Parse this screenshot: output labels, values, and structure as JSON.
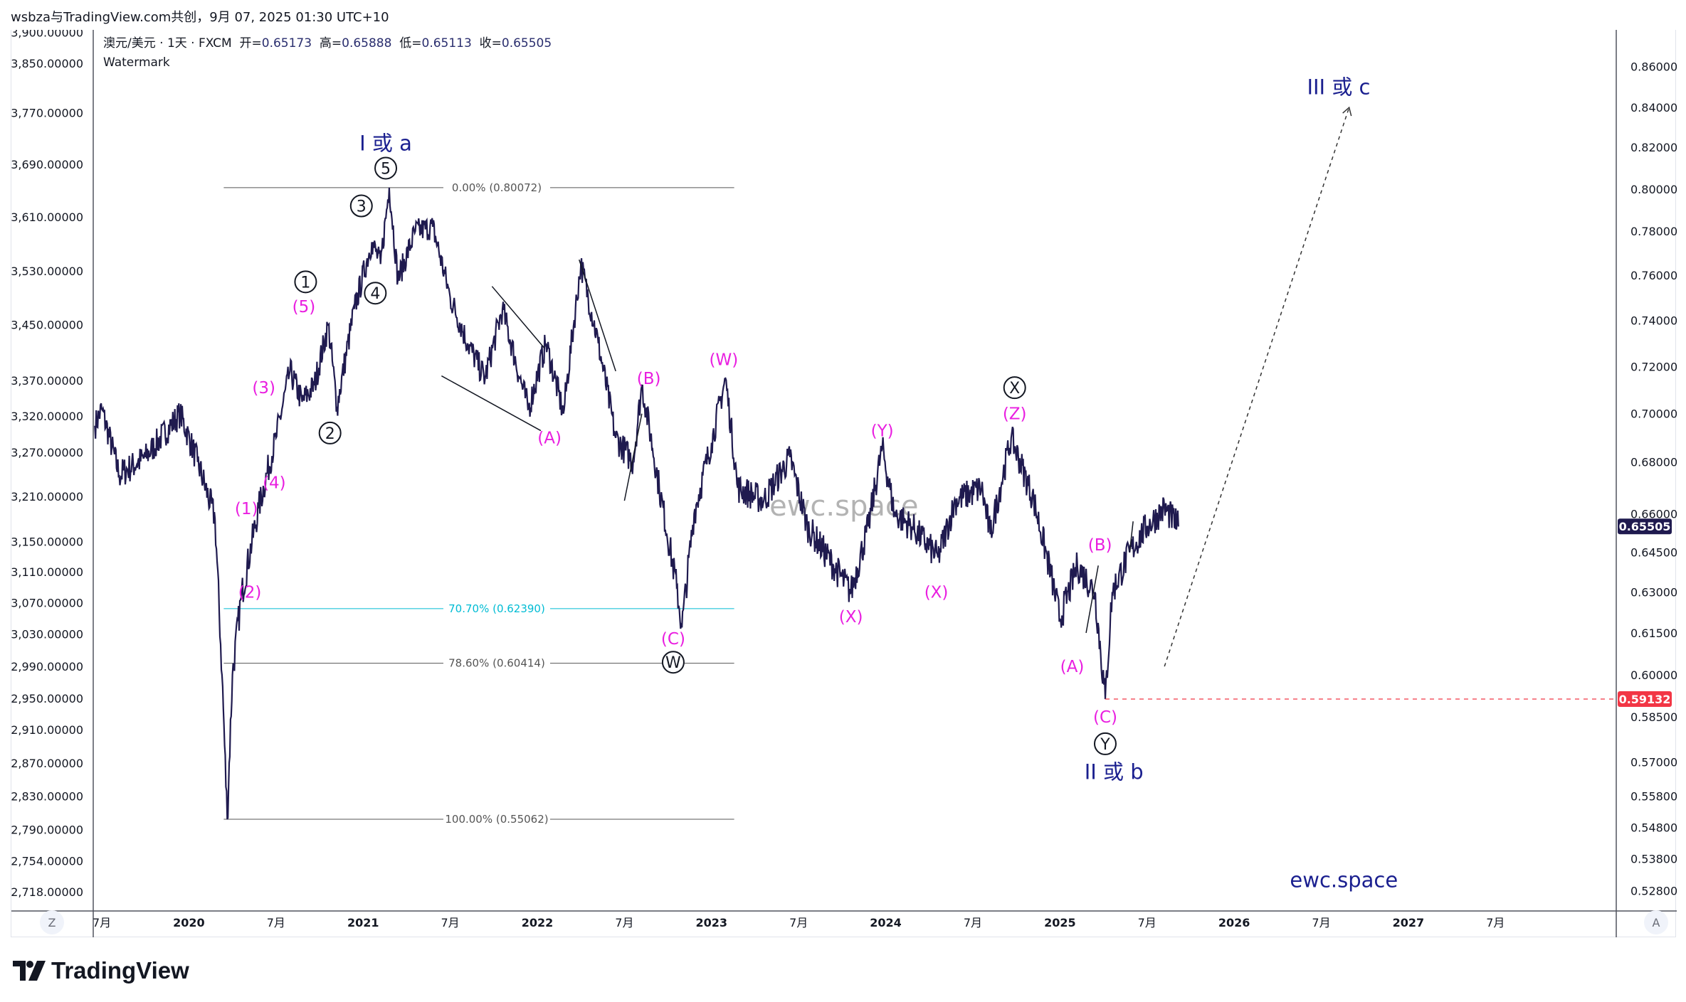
{
  "header": {
    "title": "wsbza与TradingView.com共创，9月 07, 2025 01:30 UTC+10"
  },
  "legend": {
    "symbol": "澳元/美元 · 1天 · FXCM",
    "open_label": "开=",
    "open": "0.65173",
    "high_label": "高=",
    "high": "0.65888",
    "low_label": "低=",
    "low": "0.65113",
    "close_label": "收=",
    "close": "0.65505",
    "watermark_label": "Watermark"
  },
  "colors": {
    "price_line": "#1f1a4f",
    "wave_magenta": "#e91ee0",
    "wave_navy": "#1a1f8f",
    "fib_cyan": "#00bcd4",
    "last_price_badge": "#1f1a4f",
    "low_badge": "#f23645"
  },
  "axis_buttons": {
    "left": "Z",
    "right": "A"
  },
  "brand": {
    "logo_text": "TradingView",
    "watermark_center": "ewc.space",
    "watermark_corner": "ewc.space"
  },
  "chart_data": {
    "type": "line",
    "title": "澳元/美元 · 1天 · FXCM",
    "right_axis": {
      "scale": "log",
      "ticks": [
        "0.86000",
        "0.84000",
        "0.82000",
        "0.80000",
        "0.78000",
        "0.76000",
        "0.74000",
        "0.72000",
        "0.70000",
        "0.68000",
        "0.66000",
        "0.64500",
        "0.63000",
        "0.61500",
        "0.60000",
        "0.58500",
        "0.57000",
        "0.55800",
        "0.54800",
        "0.53800",
        "0.52800"
      ],
      "last_price": "0.65505",
      "marked_low": "0.59132"
    },
    "left_axis": {
      "ticks": [
        "3,900.00000",
        "3,850.00000",
        "3,770.00000",
        "3,690.00000",
        "3,610.00000",
        "3,530.00000",
        "3,450.00000",
        "3,370.00000",
        "3,320.00000",
        "3,270.00000",
        "3,210.00000",
        "3,150.00000",
        "3,110.00000",
        "3,070.00000",
        "3,030.00000",
        "2,990.00000",
        "2,950.00000",
        "2,910.00000",
        "2,870.00000",
        "2,830.00000",
        "2,790.00000",
        "2,754.00000",
        "2,718.00000"
      ]
    },
    "x_axis": {
      "ticks": [
        {
          "t": 2019.5,
          "label": "7月"
        },
        {
          "t": 2020,
          "label": "2020",
          "bold": true
        },
        {
          "t": 2020.5,
          "label": "7月"
        },
        {
          "t": 2021,
          "label": "2021",
          "bold": true
        },
        {
          "t": 2021.5,
          "label": "7月"
        },
        {
          "t": 2022,
          "label": "2022",
          "bold": true
        },
        {
          "t": 2022.5,
          "label": "7月"
        },
        {
          "t": 2023,
          "label": "2023",
          "bold": true
        },
        {
          "t": 2023.5,
          "label": "7月"
        },
        {
          "t": 2024,
          "label": "2024",
          "bold": true
        },
        {
          "t": 2024.5,
          "label": "7月"
        },
        {
          "t": 2025,
          "label": "2025",
          "bold": true
        },
        {
          "t": 2025.5,
          "label": "7月"
        },
        {
          "t": 2026,
          "label": "2026",
          "bold": true
        },
        {
          "t": 2026.5,
          "label": "7月"
        },
        {
          "t": 2027,
          "label": "2027",
          "bold": true
        },
        {
          "t": 2027.5,
          "label": "7月"
        }
      ]
    },
    "series": [
      {
        "name": "AUDUSD",
        "points": [
          [
            2019.46,
            0.695
          ],
          [
            2019.5,
            0.702
          ],
          [
            2019.6,
            0.675
          ],
          [
            2019.75,
            0.682
          ],
          [
            2019.95,
            0.7
          ],
          [
            2020.05,
            0.68
          ],
          [
            2020.15,
            0.658
          ],
          [
            2020.19,
            0.6
          ],
          [
            2020.22,
            0.5506
          ],
          [
            2020.25,
            0.6
          ],
          [
            2020.3,
            0.628
          ],
          [
            2020.4,
            0.662
          ],
          [
            2020.5,
            0.69
          ],
          [
            2020.58,
            0.718
          ],
          [
            2020.65,
            0.705
          ],
          [
            2020.72,
            0.712
          ],
          [
            2020.8,
            0.738
          ],
          [
            2020.85,
            0.703
          ],
          [
            2020.95,
            0.745
          ],
          [
            2021.05,
            0.775
          ],
          [
            2021.1,
            0.765
          ],
          [
            2021.15,
            0.8007
          ],
          [
            2021.2,
            0.758
          ],
          [
            2021.3,
            0.78
          ],
          [
            2021.4,
            0.782
          ],
          [
            2021.5,
            0.75
          ],
          [
            2021.6,
            0.73
          ],
          [
            2021.7,
            0.715
          ],
          [
            2021.8,
            0.745
          ],
          [
            2021.9,
            0.715
          ],
          [
            2021.95,
            0.702
          ],
          [
            2022.05,
            0.73
          ],
          [
            2022.15,
            0.7
          ],
          [
            2022.25,
            0.765
          ],
          [
            2022.35,
            0.73
          ],
          [
            2022.45,
            0.69
          ],
          [
            2022.55,
            0.68
          ],
          [
            2022.6,
            0.712
          ],
          [
            2022.7,
            0.67
          ],
          [
            2022.8,
            0.632
          ],
          [
            2022.83,
            0.617
          ],
          [
            2022.9,
            0.66
          ],
          [
            2023.0,
            0.688
          ],
          [
            2023.08,
            0.715
          ],
          [
            2023.15,
            0.67
          ],
          [
            2023.3,
            0.665
          ],
          [
            2023.45,
            0.682
          ],
          [
            2023.55,
            0.655
          ],
          [
            2023.7,
            0.64
          ],
          [
            2023.8,
            0.63
          ],
          [
            2023.9,
            0.655
          ],
          [
            2023.98,
            0.686
          ],
          [
            2024.05,
            0.66
          ],
          [
            2024.15,
            0.655
          ],
          [
            2024.3,
            0.643
          ],
          [
            2024.4,
            0.665
          ],
          [
            2024.55,
            0.67
          ],
          [
            2024.6,
            0.652
          ],
          [
            2024.72,
            0.69
          ],
          [
            2024.85,
            0.665
          ],
          [
            2024.95,
            0.636
          ],
          [
            2025.0,
            0.62
          ],
          [
            2025.1,
            0.64
          ],
          [
            2025.2,
            0.63
          ],
          [
            2025.26,
            0.5913
          ],
          [
            2025.3,
            0.63
          ],
          [
            2025.4,
            0.645
          ],
          [
            2025.5,
            0.655
          ],
          [
            2025.6,
            0.662
          ],
          [
            2025.68,
            0.655
          ]
        ]
      }
    ],
    "fib_levels": [
      {
        "label": "0.00% (0.80072)",
        "price": 0.80072,
        "color": "#555"
      },
      {
        "label": "70.70% (0.62390)",
        "price": 0.6239,
        "color": "#00bcd4"
      },
      {
        "label": "78.60% (0.60414)",
        "price": 0.60414,
        "color": "#555"
      },
      {
        "label": "100.00% (0.55062)",
        "price": 0.55062,
        "color": "#555"
      }
    ],
    "fib_range": {
      "t_start": 2020.2,
      "t_end": 2023.13
    },
    "wave_labels": [
      {
        "text": "I 或 a",
        "t": 2021.13,
        "price": 0.822,
        "style": "big"
      },
      {
        "text": "5",
        "t": 2021.13,
        "price": 0.81,
        "style": "circle"
      },
      {
        "text": "3",
        "t": 2020.99,
        "price": 0.792,
        "style": "circle"
      },
      {
        "text": "1",
        "t": 2020.67,
        "price": 0.757,
        "style": "circle"
      },
      {
        "text": "4",
        "t": 2021.07,
        "price": 0.752,
        "style": "circle"
      },
      {
        "text": "2",
        "t": 2020.81,
        "price": 0.692,
        "style": "circle"
      },
      {
        "text": "(5)",
        "t": 2020.66,
        "price": 0.746,
        "style": "magenta"
      },
      {
        "text": "(3)",
        "t": 2020.43,
        "price": 0.711,
        "style": "magenta"
      },
      {
        "text": "(4)",
        "t": 2020.49,
        "price": 0.672,
        "style": "magenta"
      },
      {
        "text": "(1)",
        "t": 2020.33,
        "price": 0.662,
        "style": "magenta"
      },
      {
        "text": "(2)",
        "t": 2020.35,
        "price": 0.63,
        "style": "magenta"
      },
      {
        "text": "(A)",
        "t": 2022.07,
        "price": 0.69,
        "style": "magenta"
      },
      {
        "text": "(B)",
        "t": 2022.64,
        "price": 0.715,
        "style": "magenta"
      },
      {
        "text": "(C)",
        "t": 2022.78,
        "price": 0.613,
        "style": "magenta"
      },
      {
        "text": "W",
        "t": 2022.78,
        "price": 0.6045,
        "style": "circle"
      },
      {
        "text": "(W)",
        "t": 2023.07,
        "price": 0.723,
        "style": "magenta"
      },
      {
        "text": "(X)",
        "t": 2023.8,
        "price": 0.621,
        "style": "magenta"
      },
      {
        "text": "(Y)",
        "t": 2023.98,
        "price": 0.693,
        "style": "magenta"
      },
      {
        "text": "(X)",
        "t": 2024.29,
        "price": 0.63,
        "style": "magenta"
      },
      {
        "text": "X",
        "t": 2024.74,
        "price": 0.711,
        "style": "circle"
      },
      {
        "text": "(Z)",
        "t": 2024.74,
        "price": 0.7,
        "style": "magenta"
      },
      {
        "text": "(A)",
        "t": 2025.07,
        "price": 0.603,
        "style": "magenta"
      },
      {
        "text": "(B)",
        "t": 2025.23,
        "price": 0.648,
        "style": "magenta"
      },
      {
        "text": "(C)",
        "t": 2025.26,
        "price": 0.585,
        "style": "magenta"
      },
      {
        "text": "Y",
        "t": 2025.26,
        "price": 0.576,
        "style": "circle"
      },
      {
        "text": "II 或 b",
        "t": 2025.31,
        "price": 0.5665,
        "style": "big"
      },
      {
        "text": "III 或 c",
        "t": 2026.6,
        "price": 0.85,
        "style": "big"
      }
    ],
    "projection": {
      "from": [
        2025.6,
        0.603
      ],
      "to": [
        2026.66,
        0.84
      ]
    }
  }
}
